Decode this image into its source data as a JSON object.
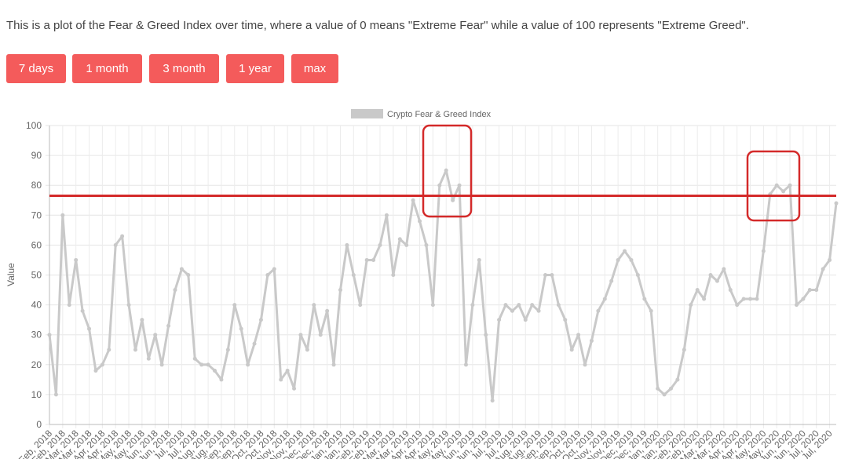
{
  "intro": "This is a plot of the Fear & Greed Index over time, where a value of 0 means \"Extreme Fear\" while a value of 100 represents \"Extreme Greed\".",
  "buttons": [
    "7 days",
    "1 month",
    "3 month",
    "1 year",
    "max"
  ],
  "chart_data": {
    "type": "line",
    "ylabel": "Value",
    "ylim": [
      0,
      100
    ],
    "yticks": [
      0,
      10,
      20,
      30,
      40,
      50,
      60,
      70,
      80,
      90,
      100
    ],
    "grid": true,
    "legend": "top",
    "hline": {
      "value": 76.5,
      "color": "#d42a2a"
    },
    "categories": [
      "Feb, 2018",
      null,
      "Feb, 2018",
      null,
      "Mar, 2018",
      null,
      "Mar, 2018",
      null,
      "Apr, 2018",
      null,
      "Apr, 2018",
      null,
      "May, 2018",
      null,
      "May, 2018",
      null,
      "Jun, 2018",
      null,
      "Jun, 2018",
      null,
      "Jul, 2018",
      null,
      "Jul, 2018",
      null,
      "Aug, 2018",
      null,
      "Aug, 2018",
      null,
      "Sep, 2018",
      null,
      "Sep, 2018",
      null,
      "Oct, 2018",
      null,
      "Oct, 2018",
      null,
      "Nov, 2018",
      null,
      "Nov, 2018",
      null,
      "Dec, 2018",
      null,
      "Dec, 2018",
      null,
      "Jan, 2019",
      null,
      "Jan, 2019",
      null,
      "Feb, 2019",
      null,
      "Feb, 2019",
      null,
      "Mar, 2019",
      null,
      "Mar, 2019",
      null,
      "Apr, 2019",
      null,
      "Apr, 2019",
      null,
      "May, 2019",
      null,
      "May, 2019",
      null,
      "Jun, 2019",
      null,
      "Jun, 2019",
      null,
      "Jul, 2019",
      null,
      "Jul, 2019",
      null,
      "Aug, 2019",
      null,
      "Aug, 2019",
      null,
      "Sep, 2019",
      null,
      "Sep, 2019",
      null,
      "Oct, 2019",
      null,
      "Oct, 2019",
      null,
      "Nov, 2019",
      null,
      "Nov, 2019",
      null,
      "Dec, 2019",
      null,
      "Dec, 2019",
      null,
      "Jan, 2020",
      null,
      "Jan, 2020",
      null,
      "Feb, 2020",
      null,
      "Feb, 2020",
      null,
      "Mar, 2020",
      null,
      "Mar, 2020",
      null,
      "Apr, 2020",
      null,
      "Apr, 2020",
      null,
      "May, 2020",
      null,
      "May, 2020",
      null,
      "Jun, 2020",
      null,
      "Jun, 2020",
      null,
      "Jul, 2020",
      null,
      "Jul, 2020",
      null
    ],
    "series": [
      {
        "name": "Crypto Fear & Greed Index",
        "color": "#c9c9c9",
        "values": [
          30,
          10,
          70,
          40,
          55,
          38,
          32,
          18,
          20,
          25,
          60,
          63,
          40,
          25,
          35,
          22,
          30,
          20,
          33,
          45,
          52,
          50,
          22,
          20,
          20,
          18,
          15,
          25,
          40,
          32,
          20,
          27,
          35,
          50,
          52,
          15,
          18,
          12,
          30,
          25,
          40,
          30,
          38,
          20,
          45,
          60,
          50,
          40,
          55,
          55,
          60,
          70,
          50,
          62,
          60,
          75,
          68,
          60,
          40,
          80,
          85,
          75,
          80,
          20,
          40,
          55,
          30,
          8,
          35,
          40,
          38,
          40,
          35,
          40,
          38,
          50,
          50,
          40,
          35,
          25,
          30,
          20,
          28,
          38,
          42,
          48,
          55,
          58,
          55,
          50,
          42,
          38,
          12,
          10,
          12,
          15,
          25,
          40,
          45,
          42,
          50,
          48,
          52,
          45,
          40,
          42,
          42,
          42,
          58,
          77,
          80,
          78,
          80,
          40,
          42,
          45,
          45,
          52,
          55,
          74
        ]
      }
    ]
  }
}
